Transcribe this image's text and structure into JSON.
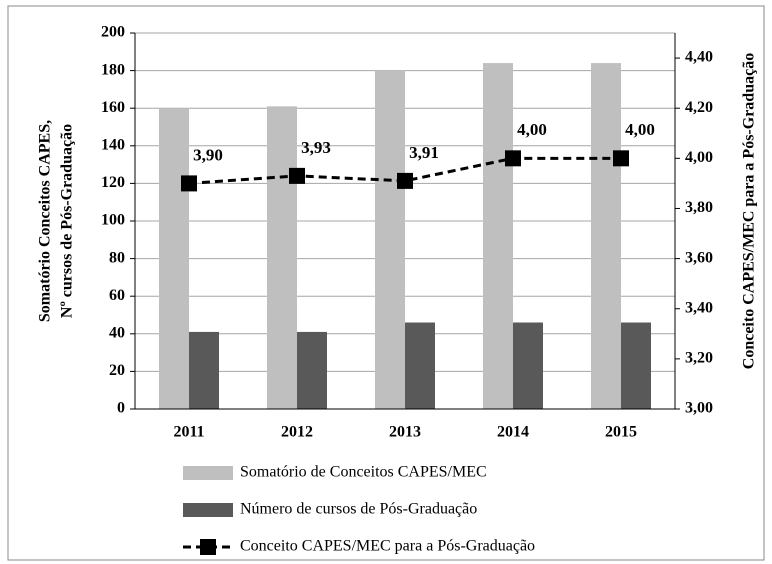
{
  "chart_data": {
    "type": "bar",
    "ylabel": [
      "Somatório Conceitos CAPES,",
      "Nº cursos de Pós-Graduação"
    ],
    "y2label": "Conceito CAPES/MEC para a Pós-Graduação",
    "categories": [
      "2011",
      "2012",
      "2013",
      "2014",
      "2015"
    ],
    "series": [
      {
        "name": "Somatório de Conceitos CAPES/MEC",
        "color": "#bfbfbf",
        "values": [
          160,
          161,
          180,
          184,
          184
        ]
      },
      {
        "name": "Número de cursos de Pós-Graduação",
        "color": "#595959",
        "values": [
          41,
          41,
          46,
          46,
          46
        ]
      },
      {
        "name": "Conceito CAPES/MEC para a Pós-Graduação",
        "color": "#000000",
        "axis": "y2",
        "type": "line",
        "values": [
          3.9,
          3.93,
          3.91,
          4.0,
          4.0
        ],
        "value_labels": [
          "3,90",
          "3,93",
          "3,91",
          "4,00",
          "4,00"
        ]
      }
    ],
    "ylim": [
      0,
      200
    ],
    "yticks": [
      0,
      20,
      40,
      60,
      80,
      100,
      120,
      140,
      160,
      180,
      200
    ],
    "y2lim": [
      3.0,
      4.5
    ],
    "y2ticks": [
      {
        "value": 3.0,
        "label": "3,00"
      },
      {
        "value": 3.2,
        "label": "3,20"
      },
      {
        "value": 3.4,
        "label": "3,40"
      },
      {
        "value": 3.6,
        "label": "3,60"
      },
      {
        "value": 3.8,
        "label": "3,80"
      },
      {
        "value": 4.0,
        "label": "4,00"
      },
      {
        "value": 4.2,
        "label": "4,20"
      },
      {
        "value": 4.4,
        "label": "4,40"
      }
    ],
    "grid": true,
    "legend": "bottom"
  }
}
